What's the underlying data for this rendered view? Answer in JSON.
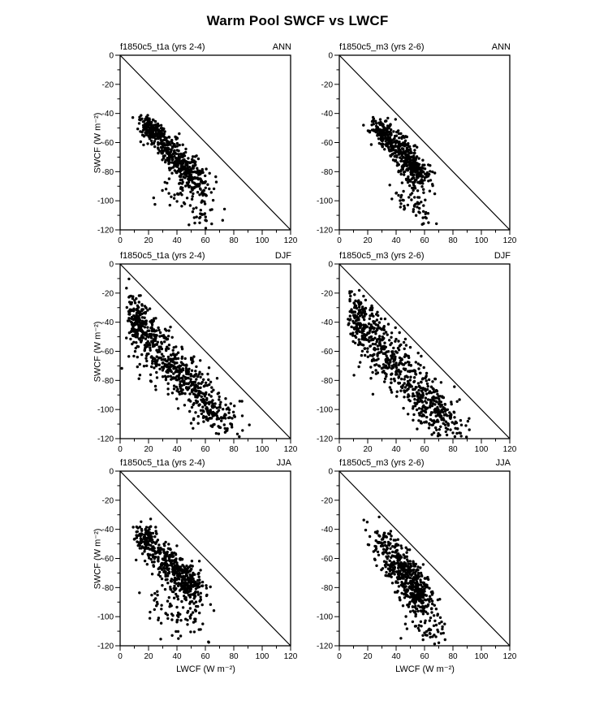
{
  "page": {
    "title": "Warm Pool SWCF vs LWCF"
  },
  "chart_data": {
    "type": "scatter",
    "title": "Warm Pool SWCF vs LWCF",
    "xlabel": "LWCF (W m⁻²)",
    "ylabel": "SWCF (W m⁻²)",
    "xlim": [
      0,
      120
    ],
    "ylim": [
      -120,
      0
    ],
    "xticks": [
      0,
      20,
      40,
      60,
      80,
      100,
      120
    ],
    "yticks": [
      0,
      -20,
      -40,
      -60,
      -80,
      -100,
      -120
    ],
    "minor_step": 10,
    "grid": false,
    "reference_line": {
      "from": [
        0,
        0
      ],
      "to": [
        120,
        -120
      ],
      "note": "one-to-one line y = -x"
    },
    "marker": {
      "color": "#000000",
      "radius_px": 1.7
    },
    "layout": {
      "rows": 3,
      "cols": 2,
      "seasons_by_row": [
        "ANN",
        "DJF",
        "JJA"
      ]
    },
    "panels": [
      {
        "title": "f1850c5_t1a (yrs 2-4)",
        "season": "ANN",
        "seed": 101,
        "clusters": [
          {
            "n": 150,
            "cx": 22,
            "cy": -51,
            "sx": 4,
            "sy": 5,
            "rho": -0.3
          },
          {
            "n": 230,
            "cx": 36,
            "cy": -66,
            "sx": 8,
            "sy": 9,
            "rho": -0.75
          },
          {
            "n": 160,
            "cx": 50,
            "cy": -80,
            "sx": 7,
            "sy": 8,
            "rho": -0.6
          },
          {
            "n": 60,
            "cx": 48,
            "cy": -97,
            "sx": 9,
            "sy": 7,
            "rho": -0.2
          },
          {
            "n": 18,
            "cx": 58,
            "cy": -110,
            "sx": 5,
            "sy": 5,
            "rho": 0
          }
        ]
      },
      {
        "title": "f1850c5_m3 (yrs 2-6)",
        "season": "ANN",
        "seed": 202,
        "clusters": [
          {
            "n": 120,
            "cx": 30,
            "cy": -52,
            "sx": 4,
            "sy": 4,
            "rho": -0.2
          },
          {
            "n": 260,
            "cx": 42,
            "cy": -65,
            "sx": 8,
            "sy": 8,
            "rho": -0.7
          },
          {
            "n": 140,
            "cx": 54,
            "cy": -80,
            "sx": 6,
            "sy": 7,
            "rho": -0.5
          },
          {
            "n": 50,
            "cx": 50,
            "cy": -97,
            "sx": 8,
            "sy": 7,
            "rho": -0.2
          },
          {
            "n": 14,
            "cx": 57,
            "cy": -112,
            "sx": 5,
            "sy": 4,
            "rho": 0
          }
        ]
      },
      {
        "title": "f1850c5_t1a (yrs 2-4)",
        "season": "DJF",
        "seed": 303,
        "clusters": [
          {
            "n": 130,
            "cx": 12,
            "cy": -42,
            "sx": 4,
            "sy": 10,
            "rho": -0.2
          },
          {
            "n": 150,
            "cx": 22,
            "cy": -48,
            "sx": 7,
            "sy": 10,
            "rho": -0.5
          },
          {
            "n": 280,
            "cx": 48,
            "cy": -80,
            "sx": 14,
            "sy": 14,
            "rho": -0.8
          },
          {
            "n": 120,
            "cx": 65,
            "cy": -103,
            "sx": 9,
            "sy": 8,
            "rho": -0.5
          },
          {
            "n": 80,
            "cx": 32,
            "cy": -70,
            "sx": 10,
            "sy": 12,
            "rho": -0.3
          }
        ]
      },
      {
        "title": "f1850c5_m3 (yrs 2-6)",
        "season": "DJF",
        "seed": 404,
        "clusters": [
          {
            "n": 120,
            "cx": 14,
            "cy": -38,
            "sx": 4,
            "sy": 9,
            "rho": -0.2
          },
          {
            "n": 150,
            "cx": 26,
            "cy": -48,
            "sx": 8,
            "sy": 10,
            "rho": -0.5
          },
          {
            "n": 280,
            "cx": 52,
            "cy": -82,
            "sx": 15,
            "sy": 14,
            "rho": -0.8
          },
          {
            "n": 120,
            "cx": 70,
            "cy": -105,
            "sx": 9,
            "sy": 8,
            "rho": -0.5
          },
          {
            "n": 80,
            "cx": 36,
            "cy": -70,
            "sx": 11,
            "sy": 12,
            "rho": -0.3
          }
        ]
      },
      {
        "title": "f1850c5_t1a (yrs 2-4)",
        "season": "JJA",
        "seed": 505,
        "clusters": [
          {
            "n": 120,
            "cx": 19,
            "cy": -47,
            "sx": 4,
            "sy": 6,
            "rho": -0.3
          },
          {
            "n": 260,
            "cx": 35,
            "cy": -65,
            "sx": 9,
            "sy": 9,
            "rho": -0.7
          },
          {
            "n": 150,
            "cx": 48,
            "cy": -77,
            "sx": 7,
            "sy": 7,
            "rho": -0.5
          },
          {
            "n": 80,
            "cx": 40,
            "cy": -93,
            "sx": 10,
            "sy": 9,
            "rho": -0.2
          },
          {
            "n": 15,
            "cx": 48,
            "cy": -108,
            "sx": 7,
            "sy": 5,
            "rho": 0
          }
        ]
      },
      {
        "title": "f1850c5_m3 (yrs 2-6)",
        "season": "JJA",
        "seed": 606,
        "clusters": [
          {
            "n": 90,
            "cx": 34,
            "cy": -52,
            "sx": 6,
            "sy": 7,
            "rho": -0.3
          },
          {
            "n": 260,
            "cx": 46,
            "cy": -70,
            "sx": 8,
            "sy": 9,
            "rho": -0.5
          },
          {
            "n": 150,
            "cx": 56,
            "cy": -83,
            "sx": 7,
            "sy": 8,
            "rho": -0.5
          },
          {
            "n": 70,
            "cx": 58,
            "cy": -98,
            "sx": 7,
            "sy": 8,
            "rho": -0.3
          },
          {
            "n": 18,
            "cx": 66,
            "cy": -112,
            "sx": 5,
            "sy": 4,
            "rho": 0
          }
        ]
      }
    ]
  }
}
